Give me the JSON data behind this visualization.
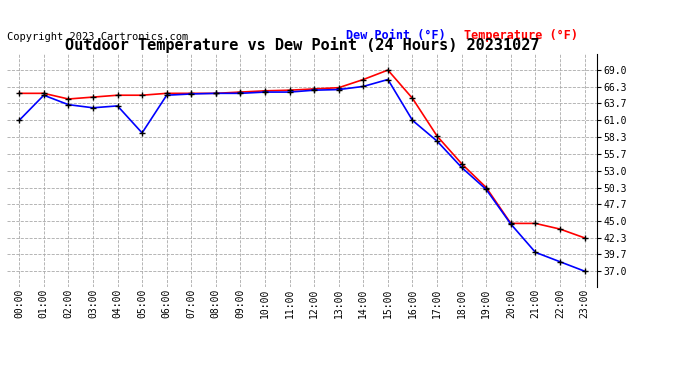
{
  "title": "Outdoor Temperature vs Dew Point (24 Hours) 20231027",
  "copyright_text": "Copyright 2023 Cartronics.com",
  "legend_dew": "Dew Point (°F)",
  "legend_temp": "Temperature (°F)",
  "background_color": "#ffffff",
  "grid_color": "#aaaaaa",
  "x_labels": [
    "00:00",
    "01:00",
    "02:00",
    "03:00",
    "04:00",
    "05:00",
    "06:00",
    "07:00",
    "08:00",
    "09:00",
    "10:00",
    "11:00",
    "12:00",
    "13:00",
    "14:00",
    "15:00",
    "16:00",
    "17:00",
    "18:00",
    "19:00",
    "20:00",
    "21:00",
    "22:00",
    "23:00"
  ],
  "temperature": [
    65.3,
    65.3,
    64.4,
    64.7,
    65.0,
    65.0,
    65.3,
    65.3,
    65.3,
    65.5,
    65.7,
    65.8,
    66.0,
    66.2,
    67.5,
    69.0,
    64.5,
    58.5,
    54.1,
    50.3,
    44.6,
    44.6,
    43.7,
    42.3
  ],
  "dew_point": [
    61.0,
    65.0,
    63.5,
    63.0,
    63.3,
    59.0,
    65.0,
    65.2,
    65.3,
    65.3,
    65.5,
    65.5,
    65.8,
    65.9,
    66.4,
    67.5,
    61.0,
    57.7,
    53.5,
    50.0,
    44.5,
    40.0,
    38.5,
    37.0
  ],
  "ylim_min": 34.5,
  "ylim_max": 71.5,
  "yticks": [
    37.0,
    39.7,
    42.3,
    45.0,
    47.7,
    50.3,
    53.0,
    55.7,
    58.3,
    61.0,
    63.7,
    66.3,
    69.0
  ],
  "temp_color": "red",
  "dew_color": "blue",
  "marker_color": "black",
  "title_fontsize": 11,
  "copyright_fontsize": 7.5,
  "legend_fontsize": 8.5,
  "tick_fontsize": 7
}
